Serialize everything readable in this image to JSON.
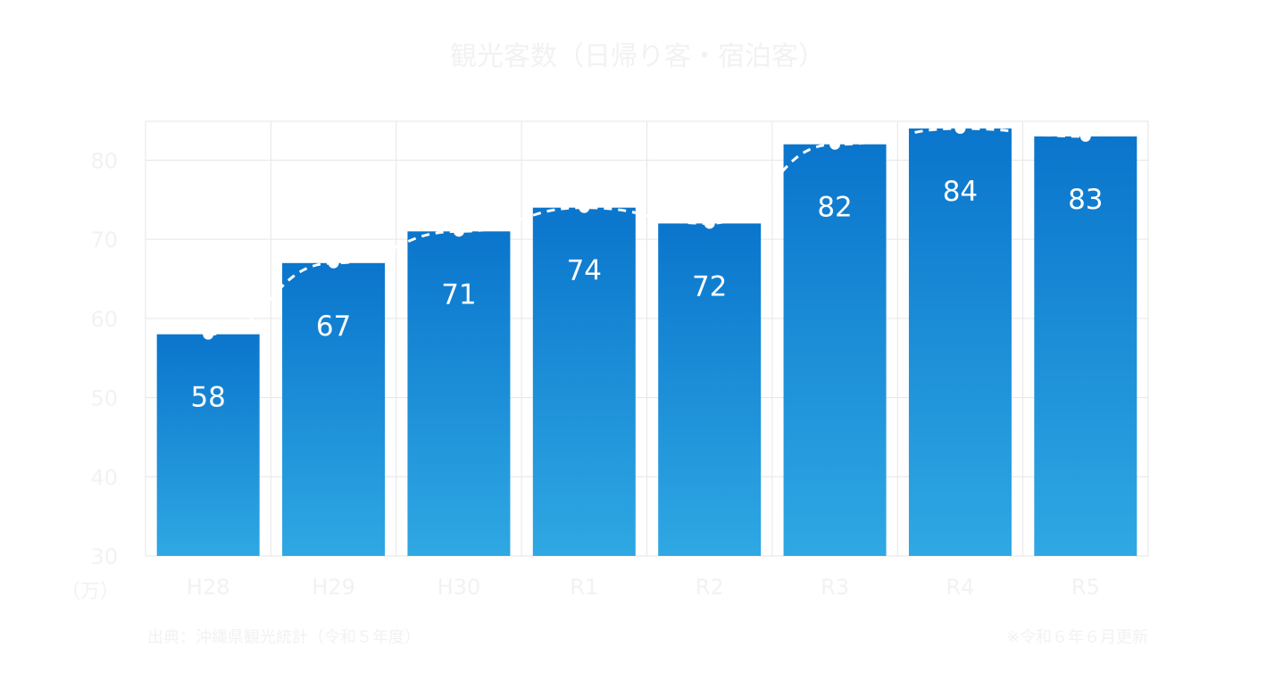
{
  "chart_data": {
    "type": "bar",
    "title": "観光客数（日帰り客・宿泊客）",
    "categories": [
      "H28",
      "H29",
      "H30",
      "R1",
      "R2",
      "R3",
      "R4",
      "R5"
    ],
    "values": [
      58,
      67,
      71,
      74,
      72,
      82,
      84,
      83
    ],
    "trend_line": {
      "style": "dashed",
      "color": "#ffffff"
    },
    "ylim": [
      30,
      84
    ],
    "yticks": [
      30,
      40,
      50,
      60,
      70,
      80
    ],
    "ylabel": "（万）",
    "xlabel": "",
    "grid": true,
    "legend": "none",
    "colors": {
      "bar_top": "#0a75cc",
      "bar_bottom": "#2fa8e3",
      "label": "#ffffff",
      "grid": "#e6e6e6"
    }
  },
  "notes": {
    "source": "出典：沖縄県観光統計（令和５年度）",
    "date": "※令和６年６月更新"
  }
}
